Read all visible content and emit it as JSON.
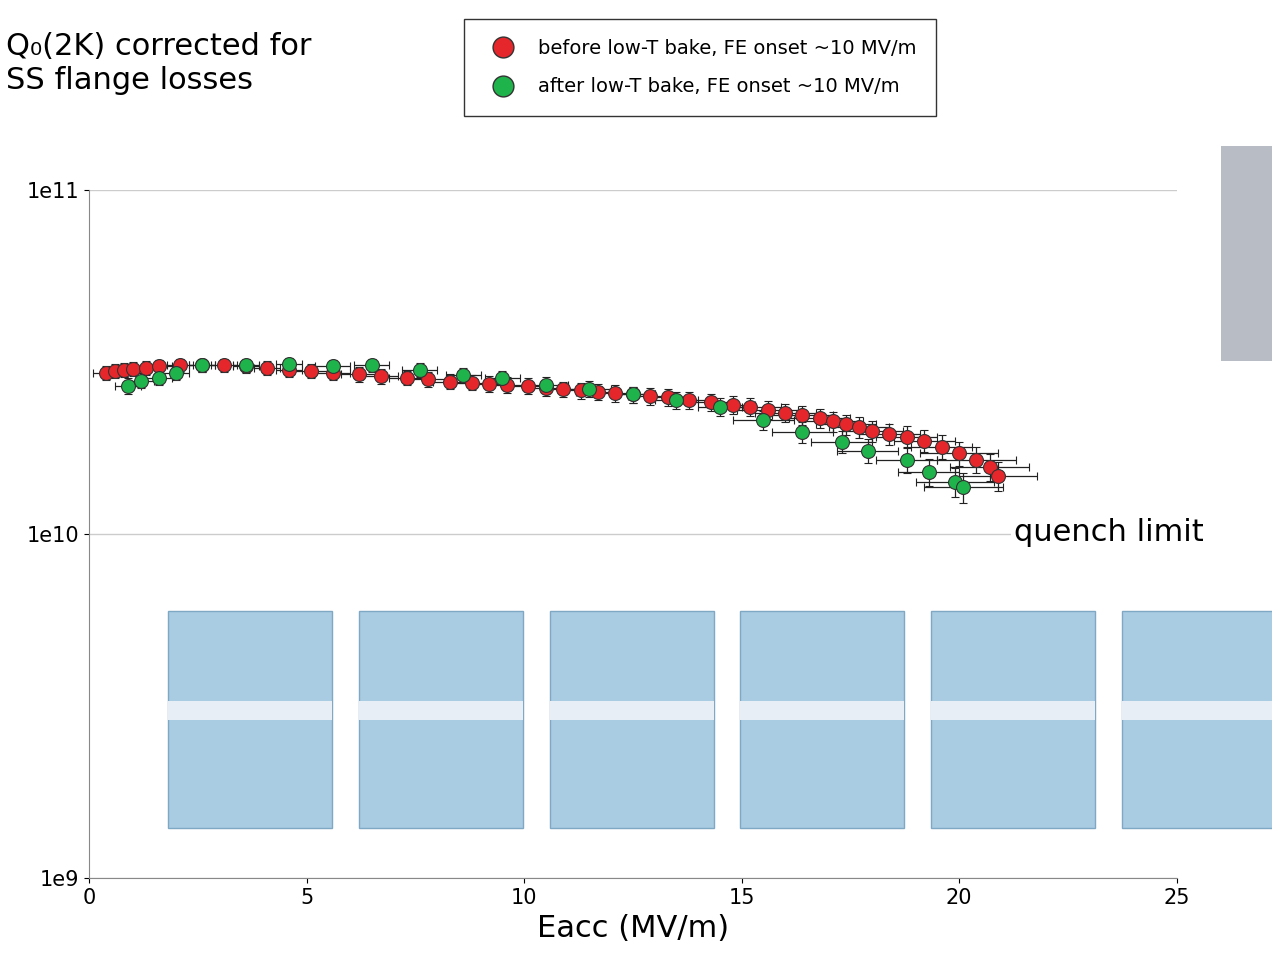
{
  "chart_data": {
    "type": "scatter",
    "title": "Q₀(2K) corrected for\nSS flange losses",
    "x_label": "Eacc (MV/m)",
    "annotations": [
      "quench limit"
    ],
    "log": "y",
    "grid": true,
    "legend": "upper center",
    "xlim": [
      0,
      25
    ],
    "xticks": [
      0,
      5,
      10,
      15,
      20,
      25
    ],
    "ylim": [
      1000000000.0,
      100000000000.0
    ],
    "yticks": [
      {
        "value": 1000000000.0,
        "label": "1e9"
      },
      {
        "value": 10000000000.0,
        "label": "1e10"
      },
      {
        "value": 100000000000.0,
        "label": "1e11"
      }
    ],
    "series": [
      {
        "name": "before low-T bake, FE onset ~10 MV/m",
        "color": "#e5262b",
        "marker": "circle",
        "x": [
          0.4,
          0.6,
          0.8,
          1.0,
          1.3,
          1.6,
          2.1,
          2.6,
          3.1,
          3.6,
          4.1,
          4.6,
          5.1,
          5.6,
          6.2,
          6.7,
          7.3,
          7.8,
          8.3,
          8.8,
          9.2,
          9.6,
          10.1,
          10.5,
          10.9,
          11.3,
          11.7,
          12.1,
          12.5,
          12.9,
          13.3,
          13.8,
          14.3,
          14.8,
          15.2,
          15.6,
          16.0,
          16.4,
          16.8,
          17.1,
          17.4,
          17.7,
          18.0,
          18.4,
          18.8,
          19.2,
          19.6,
          20.0,
          20.4,
          20.7,
          20.9
        ],
        "values": [
          29500000000.0,
          29800000000.0,
          30000000000.0,
          30200000000.0,
          30500000000.0,
          30800000000.0,
          31000000000.0,
          31000000000.0,
          31000000000.0,
          30800000000.0,
          30500000000.0,
          30000000000.0,
          29800000000.0,
          29500000000.0,
          29200000000.0,
          28800000000.0,
          28500000000.0,
          28200000000.0,
          27800000000.0,
          27600000000.0,
          27400000000.0,
          27200000000.0,
          27000000000.0,
          26700000000.0,
          26400000000.0,
          26200000000.0,
          26000000000.0,
          25700000000.0,
          25500000000.0,
          25200000000.0,
          25000000000.0,
          24600000000.0,
          24200000000.0,
          23800000000.0,
          23500000000.0,
          23000000000.0,
          22600000000.0,
          22200000000.0,
          21800000000.0,
          21300000000.0,
          20900000000.0,
          20500000000.0,
          20000000000.0,
          19600000000.0,
          19200000000.0,
          18700000000.0,
          18000000000.0,
          17200000000.0,
          16500000000.0,
          15700000000.0,
          14800000000.0
        ],
        "xerr": [
          0.3,
          0.3,
          0.3,
          0.3,
          0.3,
          0.3,
          0.3,
          0.3,
          0.3,
          0.3,
          0.3,
          0.3,
          0.4,
          0.4,
          0.4,
          0.4,
          0.4,
          0.4,
          0.4,
          0.4,
          0.4,
          0.4,
          0.5,
          0.5,
          0.5,
          0.5,
          0.5,
          0.5,
          0.5,
          0.5,
          0.5,
          0.5,
          0.5,
          0.5,
          0.7,
          0.7,
          0.7,
          0.7,
          0.7,
          0.7,
          0.7,
          0.7,
          0.7,
          0.7,
          0.7,
          0.7,
          0.7,
          0.9,
          0.9,
          0.9,
          0.9
        ],
        "yerr": 1400000000.0
      },
      {
        "name": "after low-T bake, FE onset ~10 MV/m",
        "color": "#1fb34b",
        "marker": "circle",
        "x": [
          0.9,
          1.2,
          1.6,
          2.0,
          2.6,
          3.6,
          4.6,
          5.6,
          6.5,
          7.6,
          8.6,
          9.5,
          10.5,
          11.5,
          12.5,
          13.5,
          14.5,
          15.5,
          16.4,
          17.3,
          17.9,
          18.8,
          19.3,
          19.9,
          20.1
        ],
        "values": [
          27000000000.0,
          28000000000.0,
          28500000000.0,
          29500000000.0,
          31000000000.0,
          31000000000.0,
          31200000000.0,
          30800000000.0,
          31000000000.0,
          30000000000.0,
          29000000000.0,
          28500000000.0,
          27200000000.0,
          26500000000.0,
          25500000000.0,
          24500000000.0,
          23500000000.0,
          21500000000.0,
          19800000000.0,
          18600000000.0,
          17500000000.0,
          16500000000.0,
          15200000000.0,
          14200000000.0,
          13700000000.0
        ],
        "xerr": [
          0.3,
          0.3,
          0.3,
          0.3,
          0.3,
          0.3,
          0.3,
          0.4,
          0.4,
          0.4,
          0.4,
          0.4,
          0.5,
          0.5,
          0.5,
          0.5,
          0.5,
          0.7,
          0.7,
          0.7,
          0.7,
          0.7,
          0.7,
          0.9,
          0.9
        ],
        "yerr": 1400000000.0
      }
    ]
  }
}
